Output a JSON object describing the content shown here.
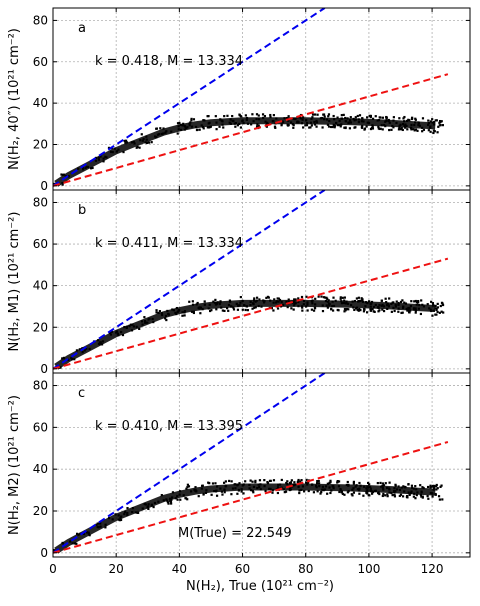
{
  "chart_data": [
    {
      "type": "scatter",
      "panel_label": "a",
      "annotation": "k = 0.418,  M = 13.334",
      "ylabel": "N(H₂, 40″) (10²¹ cm⁻²)",
      "xlim": [
        0,
        132
      ],
      "ylim": [
        -2,
        86
      ],
      "yticks": [
        0,
        20,
        40,
        60,
        80
      ],
      "blue_line": {
        "x": [
          0,
          86
        ],
        "y": [
          0,
          86
        ]
      },
      "red_line": {
        "x": [
          0,
          125
        ],
        "y": [
          0,
          54
        ]
      },
      "points": {
        "x": [
          1,
          5,
          10,
          15,
          20,
          25,
          30,
          35,
          40,
          45,
          50,
          55,
          60,
          65,
          70,
          75,
          80,
          85,
          90,
          95,
          100,
          105,
          110,
          115,
          121
        ],
        "y": [
          1,
          5,
          9,
          13,
          17,
          20,
          23,
          26,
          28,
          29.5,
          30.5,
          31,
          31.5,
          31.5,
          31.5,
          31.5,
          31.5,
          31.3,
          31.2,
          31,
          30.7,
          30.4,
          30,
          29.5,
          29
        ]
      }
    },
    {
      "type": "scatter",
      "panel_label": "b",
      "annotation": "k = 0.411,  M = 13.334",
      "ylabel": "N(H₂,  M1) (10²¹ cm⁻²)",
      "xlim": [
        0,
        132
      ],
      "ylim": [
        -2,
        86
      ],
      "yticks": [
        0,
        20,
        40,
        60,
        80
      ],
      "blue_line": {
        "x": [
          0,
          86
        ],
        "y": [
          0,
          86
        ]
      },
      "red_line": {
        "x": [
          0,
          125
        ],
        "y": [
          0,
          53
        ]
      },
      "points": {
        "x": [
          1,
          5,
          10,
          15,
          20,
          25,
          30,
          35,
          40,
          45,
          50,
          55,
          60,
          65,
          70,
          75,
          80,
          85,
          90,
          95,
          100,
          105,
          110,
          115,
          121
        ],
        "y": [
          1,
          5,
          9,
          13,
          17,
          20,
          23,
          26,
          28,
          29.5,
          30.5,
          31,
          31.5,
          31.5,
          31.5,
          31.5,
          31.5,
          31.3,
          31.2,
          31,
          30.7,
          30.4,
          30,
          29.5,
          29
        ]
      }
    },
    {
      "type": "scatter",
      "panel_label": "c",
      "annotation": "k = 0.410,  M = 13.395",
      "annotation2": "M(True) = 22.549",
      "ylabel": "N(H₂,  M2) (10²¹ cm⁻²)",
      "xlabel": "N(H₂),  True (10²¹ cm⁻²)",
      "xlim": [
        0,
        132
      ],
      "ylim": [
        -2,
        86
      ],
      "xticks": [
        0,
        20,
        40,
        60,
        80,
        100,
        120
      ],
      "yticks": [
        0,
        20,
        40,
        60,
        80
      ],
      "blue_line": {
        "x": [
          0,
          86
        ],
        "y": [
          0,
          86
        ]
      },
      "red_line": {
        "x": [
          0,
          125
        ],
        "y": [
          0,
          53
        ]
      },
      "points": {
        "x": [
          1,
          5,
          10,
          15,
          20,
          25,
          30,
          35,
          40,
          45,
          50,
          55,
          60,
          65,
          70,
          75,
          80,
          85,
          90,
          95,
          100,
          105,
          110,
          115,
          121
        ],
        "y": [
          1,
          5,
          9,
          13,
          17,
          20,
          23,
          26,
          28,
          29.5,
          30.5,
          31,
          31.5,
          31.5,
          31.5,
          31.5,
          31.5,
          31.3,
          31.2,
          31,
          30.7,
          30.4,
          30,
          29.5,
          29
        ]
      }
    }
  ],
  "colors": {
    "blue_line": "#0000ee",
    "red_line": "#ee1111",
    "points": "#000000",
    "grid": "#b0b0b0"
  }
}
